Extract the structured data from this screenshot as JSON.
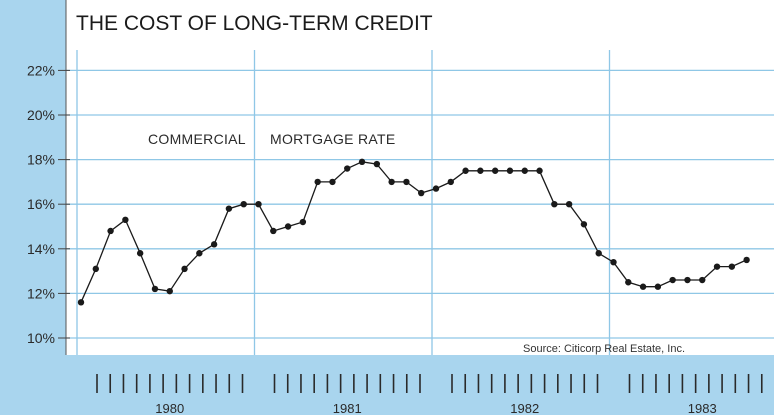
{
  "chart_data": {
    "type": "line",
    "title": "THE COST OF LONG-TERM CREDIT",
    "annotation_left": "COMMERCIAL",
    "annotation_right": "MORTGAGE RATE",
    "source": "Source: Citicorp Real Estate, Inc.",
    "yticks": [
      "10%",
      "12%",
      "14%",
      "16%",
      "18%",
      "20%",
      "22%"
    ],
    "ylim": [
      10,
      22
    ],
    "xlabels": [
      "1980",
      "1981",
      "1982",
      "1983"
    ],
    "grid": true,
    "months_per_year": 12,
    "colors": {
      "background": "#a9d5ee",
      "plot": "#ffffff",
      "grid": "#8fc7e6",
      "line": "#1a1a1a"
    },
    "series": [
      {
        "x": [
          "1980-01",
          "1980-02",
          "1980-03",
          "1980-04",
          "1980-05",
          "1980-06",
          "1980-07",
          "1980-08",
          "1980-09",
          "1980-10",
          "1980-11",
          "1980-12",
          "1981-01",
          "1981-02",
          "1981-03",
          "1981-04",
          "1981-05",
          "1981-06",
          "1981-07",
          "1981-08",
          "1981-09",
          "1981-10",
          "1981-11",
          "1981-12",
          "1982-01",
          "1982-02",
          "1982-03",
          "1982-04",
          "1982-05",
          "1982-06",
          "1982-07",
          "1982-08",
          "1982-09",
          "1982-10",
          "1982-11",
          "1982-12",
          "1983-01",
          "1983-02",
          "1983-03",
          "1983-04",
          "1983-05",
          "1983-06",
          "1983-07",
          "1983-08",
          "1983-09",
          "1983-10"
        ],
        "values": [
          11.6,
          13.1,
          14.8,
          15.3,
          13.8,
          12.2,
          12.1,
          13.1,
          13.8,
          14.2,
          15.8,
          16.0,
          16.0,
          14.8,
          15.0,
          15.2,
          17.0,
          17.0,
          17.6,
          17.9,
          17.8,
          17.0,
          17.0,
          16.5,
          16.7,
          17.0,
          17.5,
          17.5,
          17.5,
          17.5,
          17.5,
          17.5,
          16.0,
          16.0,
          15.1,
          13.8,
          13.4,
          12.5,
          12.3,
          12.3,
          12.6,
          12.6,
          12.6,
          13.2,
          13.2,
          13.5
        ]
      }
    ]
  }
}
